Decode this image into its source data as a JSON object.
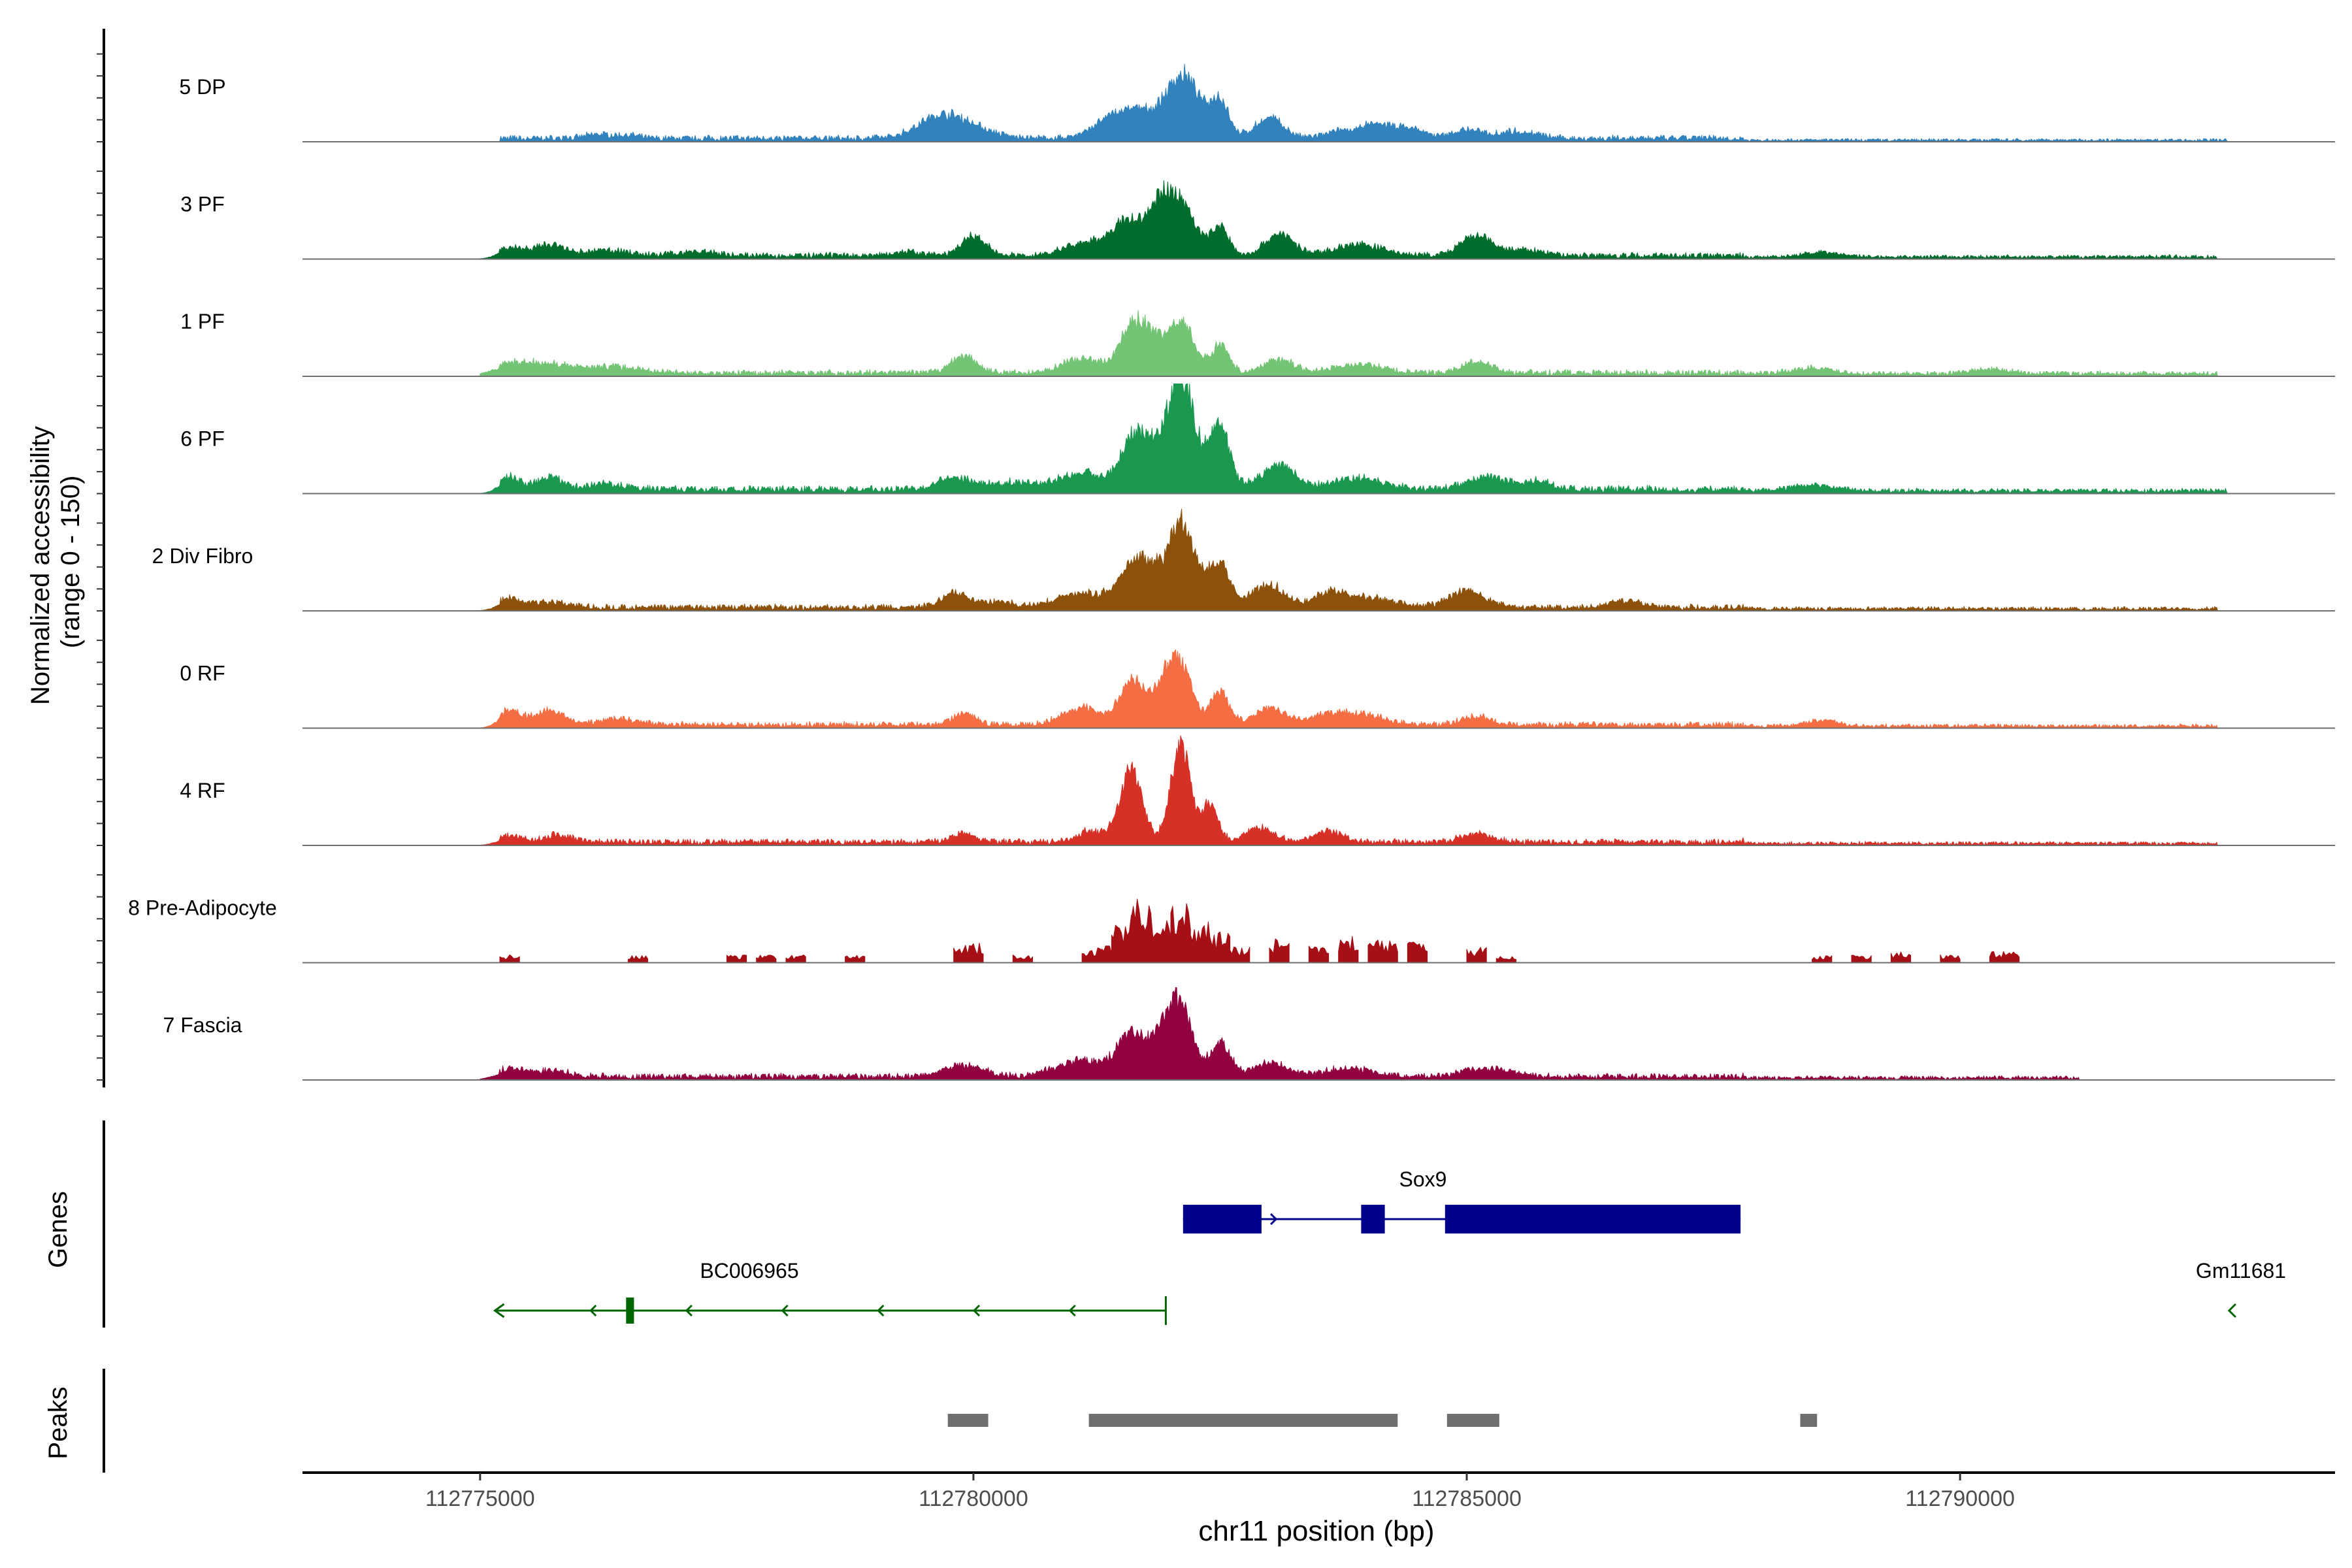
{
  "chart_data": {
    "type": "area",
    "genome": "chr11",
    "xlim": [
      112773200,
      112793800
    ],
    "xlabel": "chr11 position (bp)",
    "x_ticks": [
      112775000,
      112780000,
      112785000,
      112790000
    ],
    "x_tick_labels": [
      "112775000",
      "112780000",
      "112785000",
      "112790000"
    ],
    "ylabel_line1": "Normalized accessibility",
    "ylabel_line2": "(range 0 - 150)",
    "y_range": [
      0,
      150
    ],
    "panel_labels": {
      "genes": "Genes",
      "peaks": "Peaks"
    },
    "tracks": [
      {
        "name": "5 DP",
        "color": "#3182bd",
        "smooth": true,
        "noise": 0.9,
        "background": [
          [
            112775200,
            112787800,
            2
          ],
          [
            112787800,
            112792700,
            1
          ]
        ],
        "peaks": [
          [
            112776200,
            120,
            1.5
          ],
          [
            112776500,
            100,
            1.2
          ],
          [
            112779800,
            280,
            6.5
          ],
          [
            112779600,
            200,
            3
          ],
          [
            112781400,
            200,
            6
          ],
          [
            112781700,
            200,
            8
          ],
          [
            112782100,
            150,
            14
          ],
          [
            112782500,
            90,
            12
          ],
          [
            112782200,
            200,
            9
          ],
          [
            112783000,
            140,
            7.5
          ],
          [
            112783800,
            200,
            3
          ],
          [
            112784100,
            120,
            4
          ],
          [
            112784400,
            150,
            4
          ],
          [
            112785000,
            150,
            3
          ],
          [
            112785500,
            200,
            2.5
          ]
        ]
      },
      {
        "name": "3 PF",
        "color": "#006d2c",
        "smooth": true,
        "noise": 0.9,
        "background": [
          [
            112775200,
            112787800,
            2
          ],
          [
            112787800,
            112792600,
            1.3
          ]
        ],
        "peaks": [
          [
            112775300,
            120,
            3
          ],
          [
            112775700,
            150,
            4
          ],
          [
            112776300,
            200,
            2
          ],
          [
            112777200,
            200,
            1.5
          ],
          [
            112779300,
            150,
            1.5
          ],
          [
            112780000,
            120,
            7
          ],
          [
            112781100,
            200,
            4
          ],
          [
            112781600,
            200,
            13
          ],
          [
            112781900,
            100,
            11
          ],
          [
            112782100,
            150,
            19
          ],
          [
            112782500,
            90,
            10
          ],
          [
            112783100,
            140,
            8
          ],
          [
            112783900,
            250,
            4
          ],
          [
            112785100,
            160,
            7
          ],
          [
            112785600,
            180,
            2
          ],
          [
            112788600,
            200,
            1.5
          ]
        ]
      },
      {
        "name": "1 PF",
        "color": "#74c476",
        "smooth": true,
        "noise": 0.9,
        "background": [
          [
            112775200,
            112787800,
            2
          ],
          [
            112787800,
            112792600,
            1.6
          ]
        ],
        "peaks": [
          [
            112775300,
            200,
            2.5
          ],
          [
            112775700,
            300,
            3
          ],
          [
            112776400,
            250,
            2
          ],
          [
            112779900,
            130,
            6
          ],
          [
            112781100,
            200,
            5
          ],
          [
            112781600,
            130,
            15
          ],
          [
            112781800,
            120,
            11
          ],
          [
            112782100,
            130,
            19
          ],
          [
            112782500,
            90,
            10
          ],
          [
            112783100,
            150,
            5
          ],
          [
            112783900,
            250,
            3
          ],
          [
            112785100,
            150,
            4
          ],
          [
            112788500,
            200,
            2
          ],
          [
            112790300,
            200,
            1.5
          ]
        ]
      },
      {
        "name": "6 PF",
        "color": "#1a9850",
        "smooth": true,
        "noise": 0.9,
        "background": [
          [
            112775200,
            112787800,
            2.5
          ],
          [
            112787800,
            112792700,
            1.6
          ]
        ],
        "peaks": [
          [
            112775300,
            110,
            4.5
          ],
          [
            112775700,
            120,
            4.5
          ],
          [
            112776300,
            200,
            2
          ],
          [
            112779800,
            180,
            4.5
          ],
          [
            112780400,
            200,
            2.5
          ],
          [
            112781100,
            250,
            6
          ],
          [
            112781600,
            120,
            14
          ],
          [
            112781800,
            150,
            12
          ],
          [
            112782100,
            110,
            30
          ],
          [
            112782200,
            250,
            12
          ],
          [
            112782500,
            90,
            18
          ],
          [
            112783100,
            160,
            9
          ],
          [
            112783900,
            250,
            4
          ],
          [
            112785200,
            200,
            4.5
          ],
          [
            112785700,
            150,
            3
          ],
          [
            112788500,
            250,
            2
          ]
        ]
      },
      {
        "name": "2 Div Fibro",
        "color": "#8c510a",
        "smooth": true,
        "noise": 0.9,
        "background": [
          [
            112775200,
            112787800,
            2
          ],
          [
            112787800,
            112792600,
            1.3
          ]
        ],
        "peaks": [
          [
            112775300,
            120,
            3
          ],
          [
            112775700,
            200,
            2
          ],
          [
            112779800,
            130,
            5
          ],
          [
            112780200,
            200,
            2
          ],
          [
            112781100,
            250,
            5
          ],
          [
            112781600,
            150,
            12
          ],
          [
            112781800,
            130,
            9
          ],
          [
            112782100,
            110,
            23
          ],
          [
            112782200,
            250,
            10
          ],
          [
            112782500,
            100,
            11
          ],
          [
            112783000,
            160,
            8
          ],
          [
            112783600,
            150,
            5
          ],
          [
            112784000,
            250,
            3.5
          ],
          [
            112785000,
            180,
            6
          ],
          [
            112786600,
            150,
            2.5
          ]
        ]
      },
      {
        "name": "0 RF",
        "color": "#f46d43",
        "smooth": true,
        "noise": 0.9,
        "background": [
          [
            112775200,
            112787800,
            2
          ],
          [
            112787800,
            112792600,
            1.3
          ]
        ],
        "peaks": [
          [
            112775300,
            110,
            5
          ],
          [
            112775700,
            150,
            5
          ],
          [
            112776400,
            200,
            2
          ],
          [
            112779900,
            120,
            4
          ],
          [
            112781100,
            200,
            6
          ],
          [
            112781600,
            120,
            15
          ],
          [
            112781900,
            120,
            12
          ],
          [
            112782100,
            120,
            21
          ],
          [
            112782500,
            90,
            12
          ],
          [
            112783000,
            150,
            6
          ],
          [
            112783600,
            200,
            4
          ],
          [
            112784000,
            200,
            3
          ],
          [
            112785100,
            150,
            3
          ],
          [
            112788600,
            150,
            2
          ]
        ]
      },
      {
        "name": "4 RF",
        "color": "#d73027",
        "smooth": true,
        "noise": 0.9,
        "background": [
          [
            112775200,
            112787800,
            2
          ],
          [
            112787800,
            112792600,
            1.2
          ]
        ],
        "peaks": [
          [
            112775300,
            120,
            2.5
          ],
          [
            112775800,
            150,
            2.5
          ],
          [
            112779900,
            120,
            3
          ],
          [
            112781200,
            150,
            4
          ],
          [
            112781600,
            110,
            27
          ],
          [
            112782100,
            100,
            35
          ],
          [
            112782400,
            80,
            14
          ],
          [
            112782900,
            150,
            5
          ],
          [
            112783600,
            150,
            4
          ],
          [
            112785100,
            150,
            3
          ]
        ]
      },
      {
        "name": "8 Pre-Adipocyte",
        "color": "#a50f15",
        "smooth": false,
        "blocks": [
          [
            112775200,
            112775400,
            2
          ],
          [
            112776500,
            112776700,
            2
          ],
          [
            112777500,
            112777700,
            2
          ],
          [
            112777800,
            112778000,
            2
          ],
          [
            112778100,
            112778300,
            2
          ],
          [
            112778700,
            112778900,
            2
          ],
          [
            112779800,
            112780100,
            5
          ],
          [
            112780400,
            112780600,
            2
          ],
          [
            112781100,
            112781300,
            4
          ],
          [
            112781300,
            112781500,
            5
          ],
          [
            112781400,
            112781600,
            12
          ],
          [
            112781600,
            112781800,
            18
          ],
          [
            112781800,
            112782000,
            12
          ],
          [
            112782000,
            112782200,
            16
          ],
          [
            112782200,
            112782400,
            11
          ],
          [
            112782400,
            112782600,
            8
          ],
          [
            112782600,
            112782800,
            4
          ],
          [
            112783000,
            112783200,
            6
          ],
          [
            112783400,
            112783600,
            5
          ],
          [
            112783700,
            112783900,
            7
          ],
          [
            112784000,
            112784300,
            6
          ],
          [
            112784400,
            112784600,
            6
          ],
          [
            112785000,
            112785200,
            4
          ],
          [
            112785300,
            112785500,
            2
          ],
          [
            112788500,
            112788700,
            2
          ],
          [
            112788900,
            112789100,
            2
          ],
          [
            112789300,
            112789500,
            3
          ],
          [
            112789800,
            112790000,
            2
          ],
          [
            112790300,
            112790600,
            3
          ]
        ]
      },
      {
        "name": "7 Fascia",
        "color": "#91003f",
        "smooth": true,
        "noise": 0.9,
        "background": [
          [
            112775200,
            112787800,
            2
          ],
          [
            112787800,
            112791200,
            1.3
          ]
        ],
        "peaks": [
          [
            112775300,
            150,
            2.5
          ],
          [
            112775700,
            200,
            2
          ],
          [
            112779900,
            200,
            4
          ],
          [
            112781100,
            250,
            6
          ],
          [
            112781600,
            130,
            16
          ],
          [
            112781900,
            120,
            12
          ],
          [
            112782100,
            120,
            25
          ],
          [
            112782500,
            100,
            12
          ],
          [
            112783000,
            180,
            5
          ],
          [
            112783800,
            250,
            3
          ],
          [
            112785200,
            250,
            3
          ]
        ]
      }
    ],
    "genes": [
      {
        "name": "Sox9",
        "color": "#00008b",
        "strand": "+",
        "start": 112782125,
        "end": 112787775,
        "exons": [
          [
            112782125,
            112782920
          ],
          [
            112783930,
            112784170
          ],
          [
            112784780,
            112787775
          ]
        ]
      },
      {
        "name": "BC006965",
        "color": "#006400",
        "strand": "-",
        "start": 112775150,
        "end": 112781950,
        "exons": [
          [
            112776480,
            112776560
          ]
        ]
      },
      {
        "name": "Gm11681",
        "color": "#006400",
        "strand": "-",
        "start": 112792700,
        "end": 112792780,
        "exons": []
      }
    ],
    "peak_regions": [
      [
        112779740,
        112780150
      ],
      [
        112781170,
        112784300
      ],
      [
        112784800,
        112785330
      ],
      [
        112788380,
        112788550
      ]
    ],
    "peak_color": "#6e6e6e"
  }
}
